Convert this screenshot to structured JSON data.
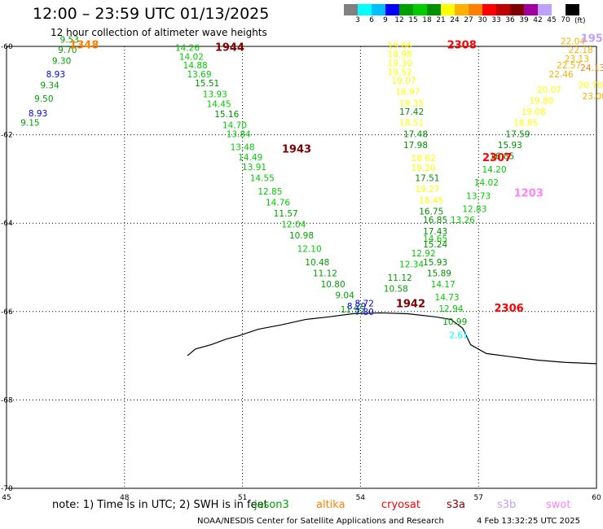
{
  "title": "12:00 – 23:59 UTC 01/13/2025",
  "subtitle": "12 hour collection of altimeter wave heights",
  "legend": {
    "colors": [
      "#808080",
      "#00ffff",
      "#00bfff",
      "#0000ff",
      "#00a000",
      "#00cc00",
      "#009000",
      "#ffff00",
      "#ffb000",
      "#ff8000",
      "#ff0000",
      "#c00000",
      "#800000",
      "#a000a0",
      "#c0a0ff",
      "#ffffff",
      "#000000"
    ],
    "ticks": [
      "3",
      "6",
      "9",
      "12",
      "15",
      "18",
      "21",
      "24",
      "27",
      "30",
      "33",
      "36",
      "39",
      "42",
      "45",
      "70"
    ],
    "unit": "(ft)"
  },
  "note": "note: 1) Time is in UTC; 2) SWH is in feet",
  "satellites": [
    {
      "name": "jason3",
      "color": "#00a000"
    },
    {
      "name": "altika",
      "color": "#ff8000"
    },
    {
      "name": "cryosat",
      "color": "#ff0000"
    },
    {
      "name": "s3a",
      "color": "#800000"
    },
    {
      "name": "s3b",
      "color": "#c0a0ff"
    },
    {
      "name": "swot",
      "color": "#ff80ff"
    }
  ],
  "credit": "NOAA/NESDIS Center for Satellite Applications and Research",
  "timestamp": "4 Feb 13:32:25 UTC 2025",
  "chart_data": {
    "type": "scatter",
    "xlim": [
      45,
      60
    ],
    "ylim": [
      -70,
      -60
    ],
    "x_ticks": [
      45,
      48,
      51,
      54,
      57,
      60
    ],
    "y_ticks": [
      -60,
      -62,
      -64,
      -66,
      -68,
      -70
    ],
    "grid": true,
    "color_scale_ft": [
      3,
      6,
      9,
      12,
      15,
      18,
      21,
      24,
      27,
      30,
      33,
      36,
      39,
      42,
      45,
      70
    ],
    "coastline": [
      [
        49.6,
        -67.0
      ],
      [
        49.8,
        -66.85
      ],
      [
        50.2,
        -66.75
      ],
      [
        50.6,
        -66.62
      ],
      [
        50.9,
        -66.55
      ],
      [
        51.4,
        -66.4
      ],
      [
        52.0,
        -66.3
      ],
      [
        52.6,
        -66.18
      ],
      [
        53.2,
        -66.12
      ],
      [
        53.8,
        -66.05
      ],
      [
        54.5,
        -66.03
      ],
      [
        55.2,
        -66.05
      ],
      [
        55.9,
        -66.12
      ],
      [
        56.3,
        -66.18
      ],
      [
        56.6,
        -66.38
      ],
      [
        56.8,
        -66.75
      ],
      [
        57.2,
        -66.95
      ],
      [
        57.8,
        -67.02
      ],
      [
        58.5,
        -67.1
      ],
      [
        59.2,
        -67.15
      ],
      [
        60.0,
        -67.18
      ]
    ],
    "time_labels": [
      {
        "label": "1348",
        "lon": 46.6,
        "lat": -60.05,
        "color": "#ff8000"
      },
      {
        "label": "1944",
        "lon": 50.3,
        "lat": -60.1,
        "color": "#800000"
      },
      {
        "label": "1943",
        "lon": 52.0,
        "lat": -62.4,
        "color": "#800000"
      },
      {
        "label": "1942",
        "lon": 54.9,
        "lat": -65.9,
        "color": "#800000"
      },
      {
        "label": "2308",
        "lon": 56.2,
        "lat": -60.05,
        "color": "#ff0000"
      },
      {
        "label": "2307",
        "lon": 57.1,
        "lat": -62.6,
        "color": "#ff0000"
      },
      {
        "label": "2306",
        "lon": 57.4,
        "lat": -66.0,
        "color": "#ff0000"
      },
      {
        "label": "1203",
        "lon": 57.9,
        "lat": -63.4,
        "color": "#ff80ff"
      },
      {
        "label": "195",
        "lon": 59.6,
        "lat": -59.9,
        "color": "#c0a0ff"
      }
    ],
    "series": [
      {
        "name": "altika",
        "points": [
          {
            "lon": 45.6,
            "lat": -61.8,
            "v": 9.15
          },
          {
            "lon": 45.8,
            "lat": -61.58,
            "v": 8.93
          },
          {
            "lon": 45.95,
            "lat": -61.25,
            "v": 9.5
          },
          {
            "lon": 46.1,
            "lat": -60.95,
            "v": 9.34
          },
          {
            "lon": 46.25,
            "lat": -60.7,
            "v": 8.93
          },
          {
            "lon": 46.4,
            "lat": -60.4,
            "v": 9.3
          },
          {
            "lon": 46.55,
            "lat": -60.15,
            "v": 9.7
          },
          {
            "lon": 46.6,
            "lat": -59.92,
            "v": 9.53
          }
        ]
      },
      {
        "name": "s3a",
        "points": [
          {
            "lon": 49.6,
            "lat": -60.1,
            "v": 14.26
          },
          {
            "lon": 49.7,
            "lat": -60.3,
            "v": 14.02
          },
          {
            "lon": 49.8,
            "lat": -60.5,
            "v": 14.88
          },
          {
            "lon": 49.9,
            "lat": -60.7,
            "v": 13.69
          },
          {
            "lon": 50.1,
            "lat": -60.9,
            "v": 15.51
          },
          {
            "lon": 50.3,
            "lat": -61.15,
            "v": 13.93
          },
          {
            "lon": 50.4,
            "lat": -61.37,
            "v": 14.45
          },
          {
            "lon": 50.6,
            "lat": -61.6,
            "v": 15.16
          },
          {
            "lon": 50.8,
            "lat": -61.85,
            "v": 14.7
          },
          {
            "lon": 50.9,
            "lat": -62.05,
            "v": 13.84
          },
          {
            "lon": 51.0,
            "lat": -62.35,
            "v": 13.48
          },
          {
            "lon": 51.2,
            "lat": -62.58,
            "v": 14.49
          },
          {
            "lon": 51.3,
            "lat": -62.8,
            "v": 13.91
          },
          {
            "lon": 51.5,
            "lat": -63.05,
            "v": 14.55
          },
          {
            "lon": 51.7,
            "lat": -63.35,
            "v": 12.85
          },
          {
            "lon": 51.9,
            "lat": -63.6,
            "v": 14.76
          },
          {
            "lon": 52.1,
            "lat": -63.85,
            "v": 11.57
          },
          {
            "lon": 52.3,
            "lat": -64.1,
            "v": 12.04
          },
          {
            "lon": 52.5,
            "lat": -64.35,
            "v": 10.98
          },
          {
            "lon": 52.7,
            "lat": -64.65,
            "v": 12.1
          },
          {
            "lon": 52.9,
            "lat": -64.95,
            "v": 10.48
          },
          {
            "lon": 53.1,
            "lat": -65.2,
            "v": 11.12
          },
          {
            "lon": 53.3,
            "lat": -65.45,
            "v": 10.8
          },
          {
            "lon": 53.6,
            "lat": -65.7,
            "v": 9.04
          },
          {
            "lon": 53.9,
            "lat": -65.95,
            "v": 8.29
          },
          {
            "lon": 54.1,
            "lat": -65.88,
            "v": 8.72
          },
          {
            "lon": 53.8,
            "lat": -66.02,
            "v": 11.95
          },
          {
            "lon": 54.1,
            "lat": -66.08,
            "v": 7.8
          }
        ]
      },
      {
        "name": "cryosat",
        "points": [
          {
            "lon": 55.0,
            "lat": -60.05,
            "v": 19.66
          },
          {
            "lon": 55.0,
            "lat": -60.25,
            "v": 18.98
          },
          {
            "lon": 55.0,
            "lat": -60.45,
            "v": 19.3
          },
          {
            "lon": 55.0,
            "lat": -60.65,
            "v": 19.52
          },
          {
            "lon": 55.1,
            "lat": -60.85,
            "v": 19.07
          },
          {
            "lon": 55.2,
            "lat": -61.1,
            "v": 18.97
          },
          {
            "lon": 55.3,
            "lat": -61.35,
            "v": 19.35
          },
          {
            "lon": 55.3,
            "lat": -61.55,
            "v": 17.42
          },
          {
            "lon": 55.3,
            "lat": -61.8,
            "v": 18.51
          },
          {
            "lon": 55.4,
            "lat": -62.05,
            "v": 17.48
          },
          {
            "lon": 55.4,
            "lat": -62.3,
            "v": 17.98
          },
          {
            "lon": 55.6,
            "lat": -62.6,
            "v": 18.62
          },
          {
            "lon": 55.6,
            "lat": -62.82,
            "v": 19.2
          },
          {
            "lon": 55.7,
            "lat": -63.05,
            "v": 17.51
          },
          {
            "lon": 55.7,
            "lat": -63.3,
            "v": 19.27
          },
          {
            "lon": 55.8,
            "lat": -63.55,
            "v": 18.45
          },
          {
            "lon": 55.8,
            "lat": -63.8,
            "v": 16.75
          },
          {
            "lon": 55.9,
            "lat": -64.0,
            "v": 16.85
          },
          {
            "lon": 55.9,
            "lat": -64.25,
            "v": 17.43
          },
          {
            "lon": 55.9,
            "lat": -64.42,
            "v": 14.65
          },
          {
            "lon": 55.9,
            "lat": -64.55,
            "v": 15.24
          },
          {
            "lon": 55.6,
            "lat": -64.75,
            "v": 12.92
          },
          {
            "lon": 55.9,
            "lat": -64.95,
            "v": 15.93
          },
          {
            "lon": 55.3,
            "lat": -65.0,
            "v": 12.34
          },
          {
            "lon": 56.0,
            "lat": -65.2,
            "v": 15.89
          },
          {
            "lon": 55.0,
            "lat": -65.3,
            "v": 11.12
          },
          {
            "lon": 56.1,
            "lat": -65.45,
            "v": 14.17
          },
          {
            "lon": 54.9,
            "lat": -65.55,
            "v": 10.58
          },
          {
            "lon": 56.2,
            "lat": -65.75,
            "v": 14.73
          },
          {
            "lon": 56.3,
            "lat": -66.0,
            "v": 12.94
          },
          {
            "lon": 56.4,
            "lat": -66.3,
            "v": 10.99
          },
          {
            "lon": 56.5,
            "lat": -66.6,
            "v": 2.61
          }
        ]
      },
      {
        "name": "swot",
        "points": [
          {
            "lon": 56.6,
            "lat": -64.0,
            "v": 13.26
          },
          {
            "lon": 56.9,
            "lat": -63.75,
            "v": 12.83
          },
          {
            "lon": 57.0,
            "lat": -63.45,
            "v": 13.73
          },
          {
            "lon": 57.2,
            "lat": -63.15,
            "v": 14.02
          },
          {
            "lon": 57.4,
            "lat": -62.85,
            "v": 14.2
          },
          {
            "lon": 57.6,
            "lat": -62.55,
            "v": 16.85
          },
          {
            "lon": 57.8,
            "lat": -62.3,
            "v": 15.93
          },
          {
            "lon": 58.0,
            "lat": -62.05,
            "v": 17.59
          },
          {
            "lon": 58.2,
            "lat": -61.8,
            "v": 18.85
          },
          {
            "lon": 58.4,
            "lat": -61.55,
            "v": 19.08
          },
          {
            "lon": 58.6,
            "lat": -61.3,
            "v": 19.8
          },
          {
            "lon": 58.8,
            "lat": -61.05,
            "v": 20.07
          },
          {
            "lon": 59.1,
            "lat": -60.7,
            "v": 22.46
          },
          {
            "lon": 59.3,
            "lat": -60.5,
            "v": 22.57
          },
          {
            "lon": 59.5,
            "lat": -60.35,
            "v": 23.13
          },
          {
            "lon": 59.6,
            "lat": -60.15,
            "v": 22.18
          },
          {
            "lon": 59.4,
            "lat": -59.95,
            "v": 22.04
          },
          {
            "lon": 59.9,
            "lat": -60.55,
            "v": 24.13
          },
          {
            "lon": 59.85,
            "lat": -60.95,
            "v": 20.7
          },
          {
            "lon": 59.95,
            "lat": -61.2,
            "v": 23.0
          }
        ]
      }
    ]
  }
}
